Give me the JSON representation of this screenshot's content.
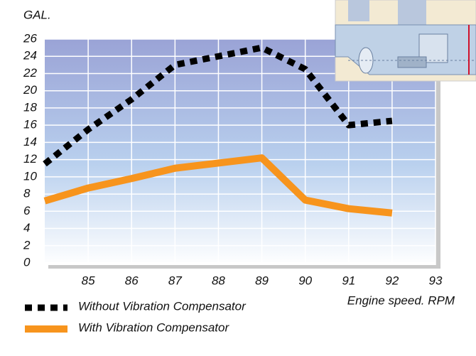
{
  "chart_data": {
    "type": "line",
    "y_label": "GAL.",
    "x_label": "Engine speed. RPM",
    "x": [
      84,
      85,
      86,
      87,
      88,
      89,
      90,
      91,
      92
    ],
    "series": [
      {
        "name": "Without Vibration Compensator",
        "color": "#000000",
        "style": "dotted",
        "values": [
          11.5,
          15.5,
          19,
          23,
          24,
          25,
          22.5,
          16,
          16.5
        ]
      },
      {
        "name": "With Vibration Compensator",
        "color": "#f7941d",
        "style": "solid",
        "values": [
          7.2,
          8.7,
          9.8,
          11,
          11.6,
          12.2,
          7.3,
          6.3,
          5.8
        ]
      }
    ],
    "xlim": [
      84,
      93
    ],
    "xticks": [
      85,
      86,
      87,
      88,
      89,
      90,
      91,
      92,
      93
    ],
    "ylim": [
      0,
      26
    ],
    "yticks": [
      0,
      2,
      4,
      6,
      8,
      10,
      12,
      14,
      16,
      18,
      20,
      22,
      24,
      26
    ],
    "grid": true
  }
}
